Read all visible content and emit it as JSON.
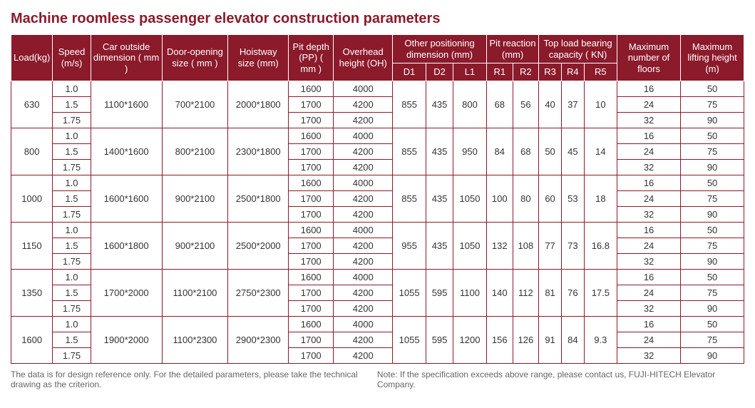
{
  "title": "Machine roomless passenger elevator construction parameters",
  "headers": {
    "load": "Load(kg)",
    "speed": "Speed (m/s)",
    "car": "Car outside dimension ( mm )",
    "door": "Door-opening size ( mm )",
    "hoistway": "Hoistway size (mm)",
    "pit": "Pit depth (PP) ( mm )",
    "overhead": "Overhead height (OH)",
    "otherpos": "Other positioning dimension (mm)",
    "d1": "D1",
    "d2": "D2",
    "l1": "L1",
    "pitreact": "Pit reaction (mm)",
    "r1": "R1",
    "r2": "R2",
    "topload": "Top load bearing capacity ( KN)",
    "r3": "R3",
    "r4": "R4",
    "r5": "R5",
    "floors": "Maximum number of floors",
    "height": "Maximum lifting height (m)"
  },
  "groups": [
    {
      "load": "630",
      "car": "1100*1600",
      "door": "700*2100",
      "hoistway": "2000*1800",
      "d1": "855",
      "d2": "435",
      "l1": "800",
      "r1": "68",
      "r2": "56",
      "r3": "40",
      "r4": "37",
      "r5": "10",
      "rows": [
        {
          "speed": "1.0",
          "pit": "1600",
          "oh": "4000",
          "floors": "16",
          "height": "50"
        },
        {
          "speed": "1.5",
          "pit": "1700",
          "oh": "4200",
          "floors": "24",
          "height": "75"
        },
        {
          "speed": "1.75",
          "pit": "1700",
          "oh": "4200",
          "floors": "32",
          "height": "90"
        }
      ]
    },
    {
      "load": "800",
      "car": "1400*1600",
      "door": "800*2100",
      "hoistway": "2300*1800",
      "d1": "855",
      "d2": "435",
      "l1": "950",
      "r1": "84",
      "r2": "68",
      "r3": "50",
      "r4": "45",
      "r5": "14",
      "rows": [
        {
          "speed": "1.0",
          "pit": "1600",
          "oh": "4000",
          "floors": "16",
          "height": "50"
        },
        {
          "speed": "1.5",
          "pit": "1700",
          "oh": "4200",
          "floors": "24",
          "height": "75"
        },
        {
          "speed": "1.75",
          "pit": "1700",
          "oh": "4200",
          "floors": "32",
          "height": "90"
        }
      ]
    },
    {
      "load": "1000",
      "car": "1600*1600",
      "door": "900*2100",
      "hoistway": "2500*1800",
      "d1": "855",
      "d2": "435",
      "l1": "1050",
      "r1": "100",
      "r2": "80",
      "r3": "60",
      "r4": "53",
      "r5": "18",
      "rows": [
        {
          "speed": "1.0",
          "pit": "1600",
          "oh": "4000",
          "floors": "16",
          "height": "50"
        },
        {
          "speed": "1.5",
          "pit": "1700",
          "oh": "4200",
          "floors": "24",
          "height": "75"
        },
        {
          "speed": "1.75",
          "pit": "1700",
          "oh": "4200",
          "floors": "32",
          "height": "90"
        }
      ]
    },
    {
      "load": "1150",
      "car": "1600*1800",
      "door": "900*2100",
      "hoistway": "2500*2000",
      "d1": "955",
      "d2": "435",
      "l1": "1050",
      "r1": "132",
      "r2": "108",
      "r3": "77",
      "r4": "73",
      "r5": "16.8",
      "rows": [
        {
          "speed": "1.0",
          "pit": "1600",
          "oh": "4000",
          "floors": "16",
          "height": "50"
        },
        {
          "speed": "1.5",
          "pit": "1700",
          "oh": "4200",
          "floors": "24",
          "height": "75"
        },
        {
          "speed": "1.75",
          "pit": "1700",
          "oh": "4200",
          "floors": "32",
          "height": "90"
        }
      ]
    },
    {
      "load": "1350",
      "car": "1700*2000",
      "door": "1100*2100",
      "hoistway": "2750*2300",
      "d1": "1055",
      "d2": "595",
      "l1": "1100",
      "r1": "140",
      "r2": "112",
      "r3": "81",
      "r4": "76",
      "r5": "17.5",
      "rows": [
        {
          "speed": "1.0",
          "pit": "1600",
          "oh": "4000",
          "floors": "16",
          "height": "50"
        },
        {
          "speed": "1.5",
          "pit": "1700",
          "oh": "4200",
          "floors": "24",
          "height": "75"
        },
        {
          "speed": "1.75",
          "pit": "1700",
          "oh": "4200",
          "floors": "32",
          "height": "90"
        }
      ]
    },
    {
      "load": "1600",
      "car": "1900*2000",
      "door": "1100*2300",
      "hoistway": "2900*2300",
      "d1": "1055",
      "d2": "595",
      "l1": "1200",
      "r1": "156",
      "r2": "126",
      "r3": "91",
      "r4": "84",
      "r5": "9.3",
      "rows": [
        {
          "speed": "1.0",
          "pit": "1600",
          "oh": "4000",
          "floors": "16",
          "height": "50"
        },
        {
          "speed": "1.5",
          "pit": "1700",
          "oh": "4200",
          "floors": "24",
          "height": "75"
        },
        {
          "speed": "1.75",
          "pit": "1700",
          "oh": "4200",
          "floors": "32",
          "height": "90"
        }
      ]
    }
  ],
  "footer_left": "The data is for design reference only. For the detailed parameters, please take the technical drawing as the criterion.",
  "footer_right": "Note: If the specification exceeds above range, please contact us, FUJI-HITECH Elevator Company."
}
